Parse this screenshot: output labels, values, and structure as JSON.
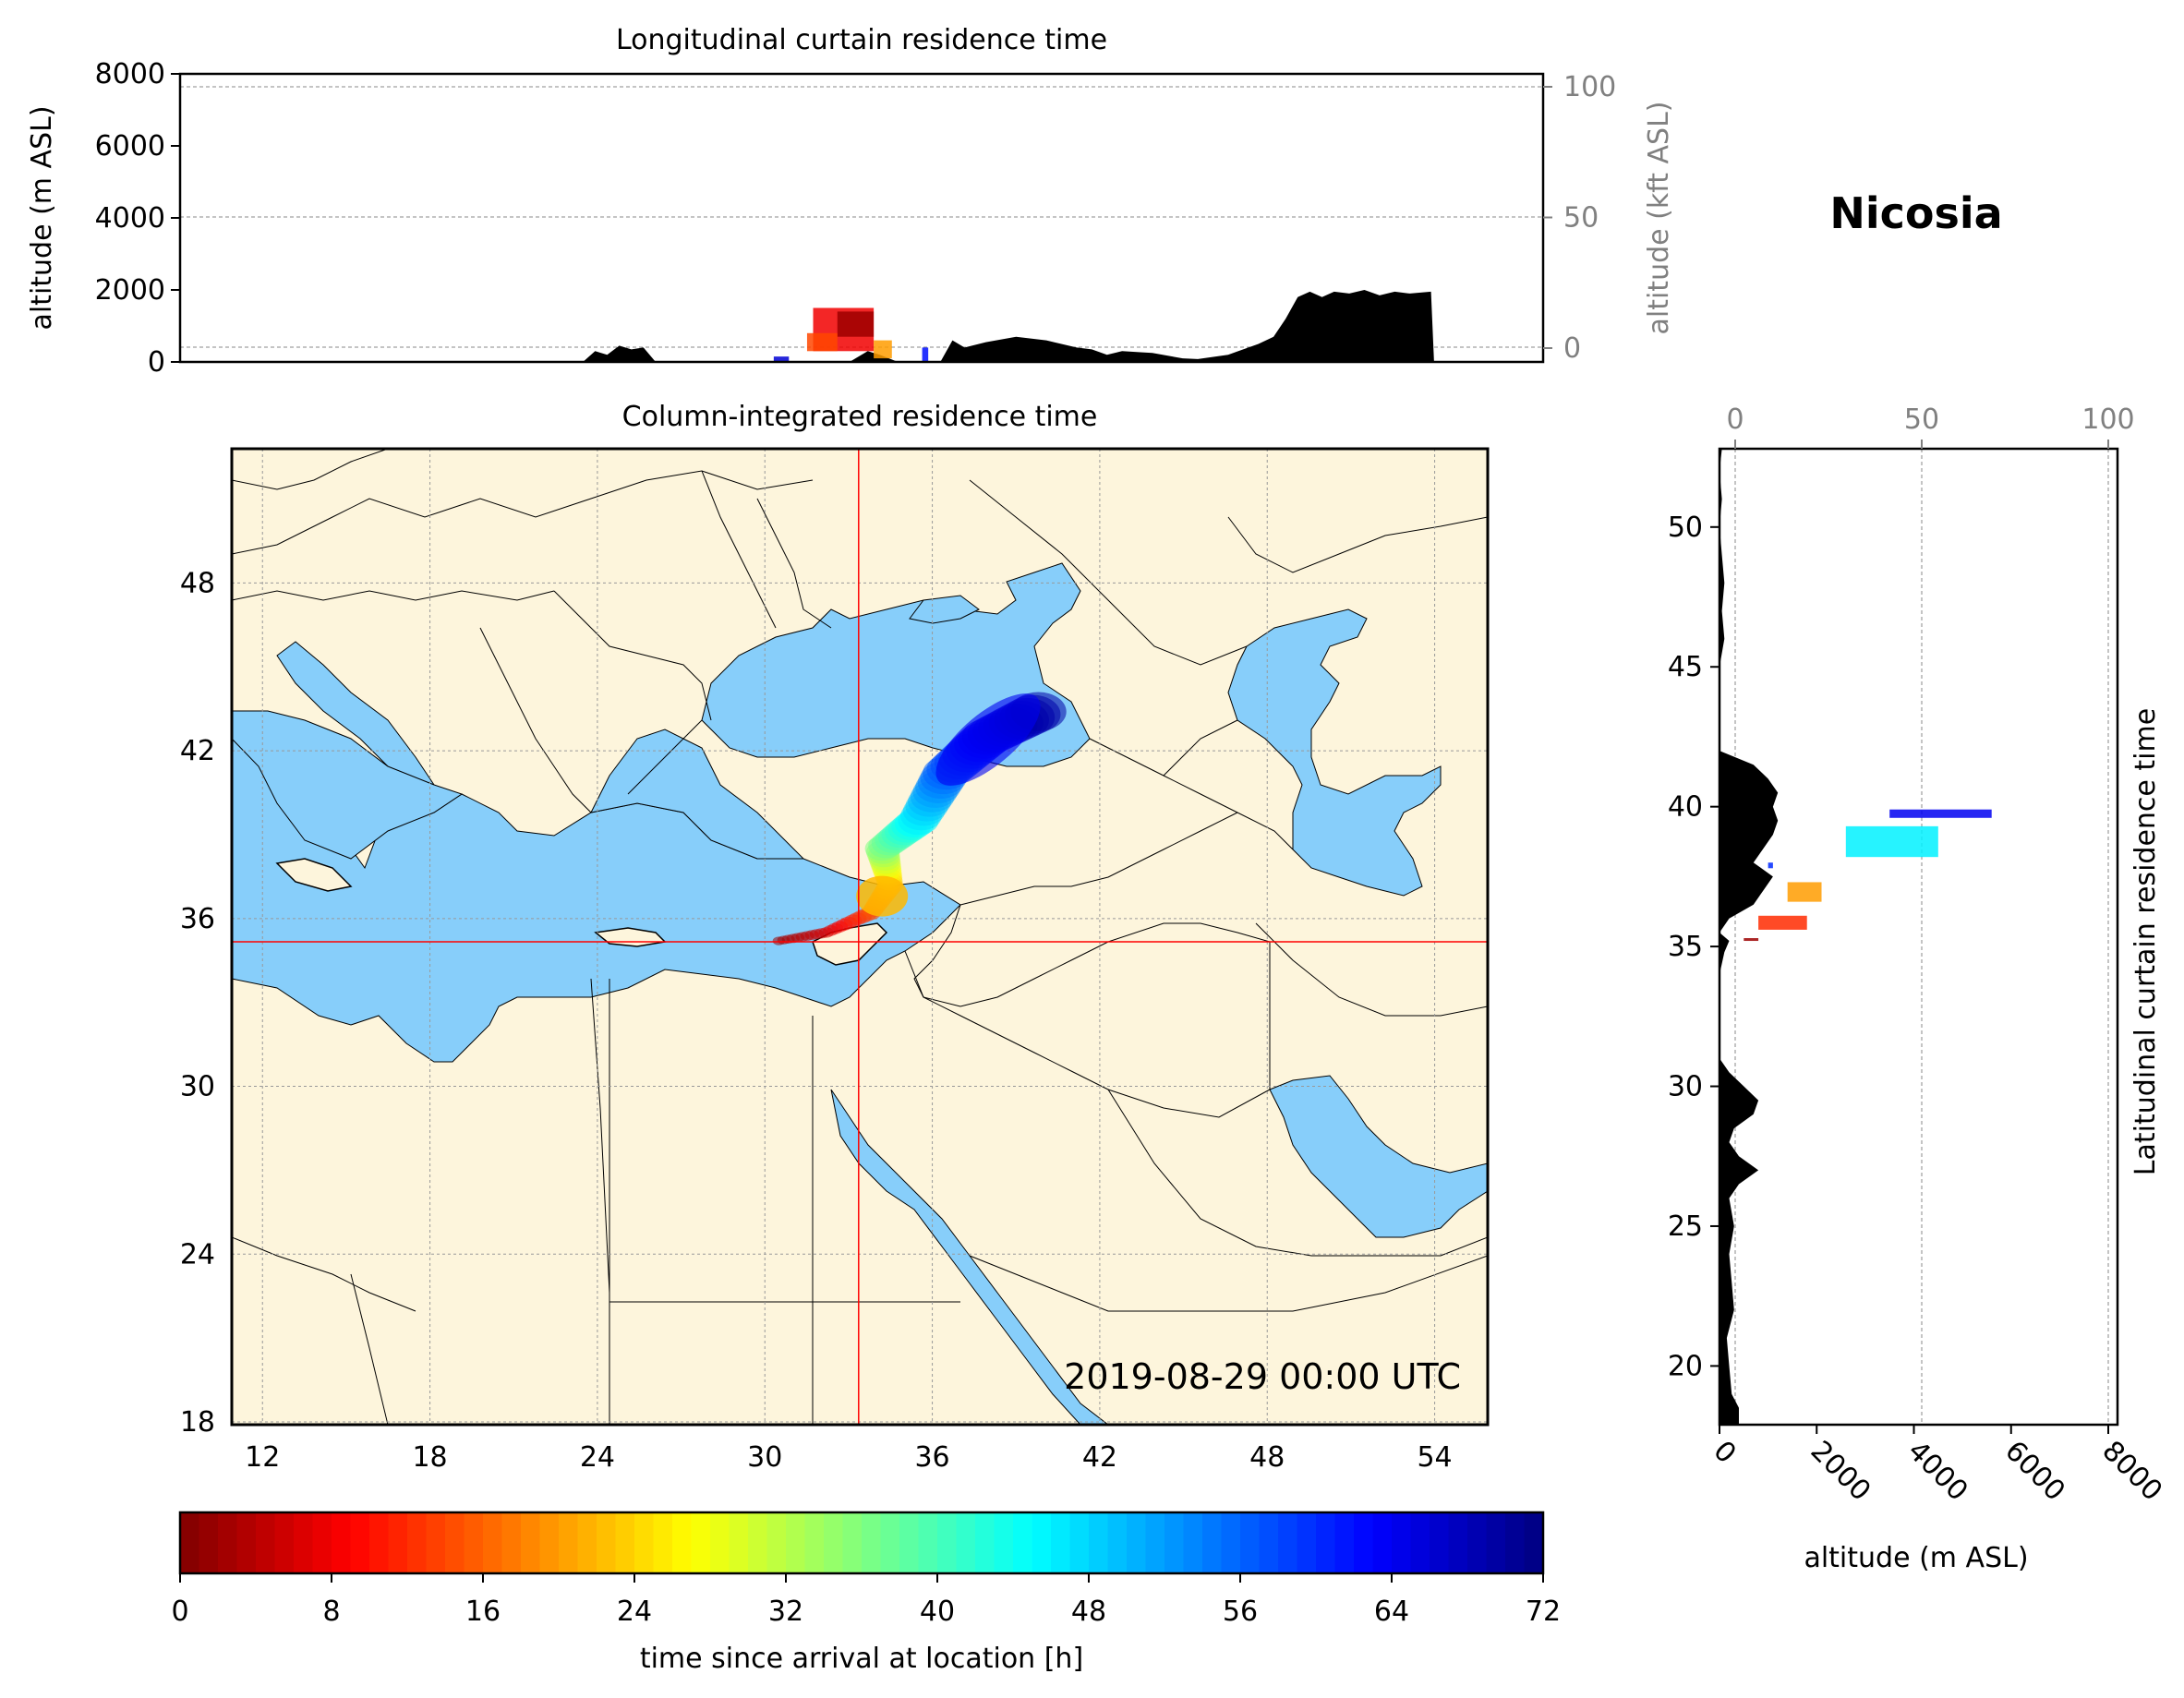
{
  "location": {
    "name": "Nicosia",
    "lon": 33.36,
    "lat": 35.17
  },
  "timestamp": "2019-08-29 00:00 UTC",
  "colors": {
    "land": "#fdf5dc",
    "sea": "#87cefa",
    "border": "#000000",
    "crosshair": "#ff0000",
    "terrain": "#000000"
  },
  "chart_data": [
    {
      "type": "area",
      "title": "Longitudinal curtain residence time",
      "ylabel": "altitude (m ASL)",
      "ylabel_right": "altitude (kft ASL)",
      "ylim": [
        0,
        8000
      ],
      "yticks": [
        "0",
        "2000",
        "4000",
        "6000",
        "8000"
      ],
      "yticks_right": [
        "0",
        "50",
        "100"
      ],
      "terrain_profile": {
        "lon": [
          11,
          24.2,
          24.6,
          25.0,
          25.4,
          25.8,
          26.2,
          26.6,
          33.0,
          33.6,
          34.0,
          34.6,
          35.5,
          36.0,
          36.4,
          36.8,
          37.5,
          38.5,
          39.5,
          40.5,
          41.0,
          41.5,
          42.0,
          43.0,
          44.0,
          44.5,
          45.5,
          46.5,
          47.0,
          47.4,
          47.8,
          48.2,
          48.6,
          49.0,
          49.5,
          50.0,
          50.5,
          51.0,
          51.5,
          52.2,
          52.3
        ],
        "altitude_m": [
          0,
          0,
          300,
          200,
          450,
          350,
          400,
          0,
          0,
          300,
          200,
          0,
          0,
          0,
          600,
          400,
          550,
          700,
          600,
          400,
          350,
          200,
          300,
          250,
          100,
          80,
          200,
          500,
          700,
          1200,
          1800,
          1950,
          1800,
          1950,
          1900,
          2000,
          1850,
          1950,
          1900,
          1950,
          0
        ]
      },
      "residence_patches": [
        {
          "lon_range": [
            31.8,
            33.8
          ],
          "altitude_range": [
            300,
            1500
          ],
          "time_h": 8
        },
        {
          "lon_range": [
            32.6,
            33.8
          ],
          "altitude_range": [
            700,
            1400
          ],
          "time_h": 2
        },
        {
          "lon_range": [
            31.6,
            32.6
          ],
          "altitude_range": [
            300,
            800
          ],
          "time_h": 14
        },
        {
          "lon_range": [
            33.8,
            34.4
          ],
          "altitude_range": [
            100,
            600
          ],
          "time_h": 20
        },
        {
          "lon_range": [
            35.4,
            35.6
          ],
          "altitude_range": [
            0,
            400
          ],
          "time_h": 62
        },
        {
          "lon_range": [
            30.5,
            31.0
          ],
          "altitude_range": [
            0,
            150
          ],
          "time_h": 66
        }
      ]
    },
    {
      "type": "heatmap",
      "title": "Column-integrated residence time",
      "xticks": [
        "12",
        "18",
        "24",
        "30",
        "36",
        "42",
        "48",
        "54"
      ],
      "yticks": [
        "18",
        "24",
        "30",
        "36",
        "42",
        "48"
      ],
      "xlim": [
        10.9,
        55.9
      ],
      "ylim": [
        17.9,
        52.8
      ],
      "colorbar": {
        "label": "time since arrival at location [h]",
        "range": [
          0,
          72
        ],
        "ticks": [
          "0",
          "8",
          "16",
          "24",
          "32",
          "40",
          "48",
          "56",
          "64",
          "72"
        ],
        "colormap": "jet_r"
      },
      "plume_path": [
        {
          "lon": 30.5,
          "lat": 35.2,
          "time_h": 2
        },
        {
          "lon": 32.2,
          "lat": 35.5,
          "time_h": 6
        },
        {
          "lon": 33.8,
          "lat": 36.2,
          "time_h": 14
        },
        {
          "lon": 34.5,
          "lat": 37.2,
          "time_h": 22
        },
        {
          "lon": 34.2,
          "lat": 38.5,
          "time_h": 36
        },
        {
          "lon": 35.5,
          "lat": 39.5,
          "time_h": 46
        },
        {
          "lon": 36.5,
          "lat": 41.2,
          "time_h": 56
        },
        {
          "lon": 38.0,
          "lat": 42.5,
          "time_h": 64
        },
        {
          "lon": 40.0,
          "lat": 43.5,
          "time_h": 70
        }
      ]
    },
    {
      "type": "area",
      "title": "Latitudinal curtain residence time",
      "xlabel": "altitude (m ASL)",
      "xlim": [
        0,
        8000
      ],
      "xticks": [
        "0",
        "2000",
        "4000",
        "6000",
        "8000"
      ],
      "xticks_top": [
        "0",
        "50",
        "100"
      ],
      "yticks": [
        "20",
        "25",
        "30",
        "35",
        "40",
        "45",
        "50"
      ],
      "ylim": [
        17.9,
        52.8
      ],
      "terrain_profile": {
        "lat": [
          17.9,
          18.5,
          19,
          20,
          21,
          22,
          23,
          24,
          25,
          26,
          26.5,
          27,
          27.5,
          28,
          28.5,
          29,
          29.5,
          30,
          30.5,
          31,
          32,
          33,
          34,
          34.8,
          35.2,
          35.5,
          36,
          36.5,
          37,
          37.5,
          38,
          38.5,
          39,
          39.5,
          40,
          40.5,
          41,
          41.5,
          42,
          43,
          45,
          46,
          47,
          48,
          49,
          50,
          51,
          52,
          52.8
        ],
        "altitude_m": [
          400,
          400,
          250,
          200,
          150,
          300,
          250,
          200,
          300,
          200,
          400,
          800,
          400,
          200,
          300,
          700,
          800,
          500,
          200,
          0,
          0,
          0,
          0,
          100,
          200,
          0,
          200,
          700,
          900,
          1100,
          700,
          900,
          1100,
          1200,
          1100,
          1200,
          1000,
          700,
          0,
          0,
          0,
          100,
          50,
          100,
          50,
          0,
          50,
          0,
          50
        ]
      },
      "residence_patches": [
        {
          "lat_range": [
            39.6,
            39.9
          ],
          "altitude_range": [
            3500,
            5600
          ],
          "time_h": 64
        },
        {
          "lat_range": [
            38.2,
            39.3
          ],
          "altitude_range": [
            2600,
            4500
          ],
          "time_h": 46
        },
        {
          "lat_range": [
            36.6,
            37.3
          ],
          "altitude_range": [
            1400,
            2100
          ],
          "time_h": 20
        },
        {
          "lat_range": [
            35.6,
            36.1
          ],
          "altitude_range": [
            800,
            1800
          ],
          "time_h": 12
        },
        {
          "lat_range": [
            35.2,
            35.3
          ],
          "altitude_range": [
            500,
            800
          ],
          "time_h": 2
        },
        {
          "lat_range": [
            37.8,
            38.0
          ],
          "altitude_range": [
            1000,
            1100
          ],
          "time_h": 60
        }
      ]
    }
  ]
}
